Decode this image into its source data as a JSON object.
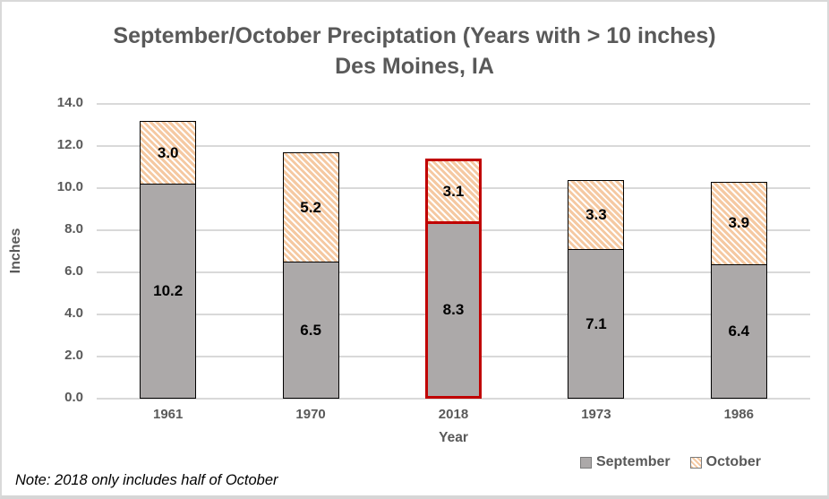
{
  "title": {
    "line1": "September/October Preciptation (Years with > 10 inches)",
    "line2": "Des Moines, IA"
  },
  "note": "Note: 2018 only includes half of October",
  "legend": {
    "items": [
      {
        "label": "September"
      },
      {
        "label": "October"
      }
    ]
  },
  "colors": {
    "september_fill": "#ACA9A9",
    "october_hatch": "#F5C9A2",
    "bar_outline": "#000000",
    "highlight_outline": "#C00000",
    "gridline": "#D9D9D9",
    "text_gray": "#595959",
    "frame_border": "#D9D9D9"
  },
  "chart_data": {
    "type": "bar",
    "stacked": true,
    "title": "September/October Preciptation (Years with > 10 inches) Des Moines, IA",
    "xlabel": "Year",
    "ylabel": "Inches",
    "ylim": [
      0,
      14
    ],
    "ytick_step": 2,
    "ytick_labels": [
      "0.0",
      "2.0",
      "4.0",
      "6.0",
      "8.0",
      "10.0",
      "12.0",
      "14.0"
    ],
    "categories": [
      "1961",
      "1970",
      "2018",
      "1973",
      "1986"
    ],
    "series": [
      {
        "name": "September",
        "values": [
          10.2,
          6.5,
          8.3,
          7.1,
          6.4
        ]
      },
      {
        "name": "October",
        "values": [
          3.0,
          5.2,
          3.1,
          3.3,
          3.9
        ]
      }
    ],
    "totals": [
      13.2,
      11.7,
      11.4,
      10.4,
      10.3
    ],
    "highlighted_category": "2018",
    "grid": true,
    "legend_position": "bottom-right"
  }
}
